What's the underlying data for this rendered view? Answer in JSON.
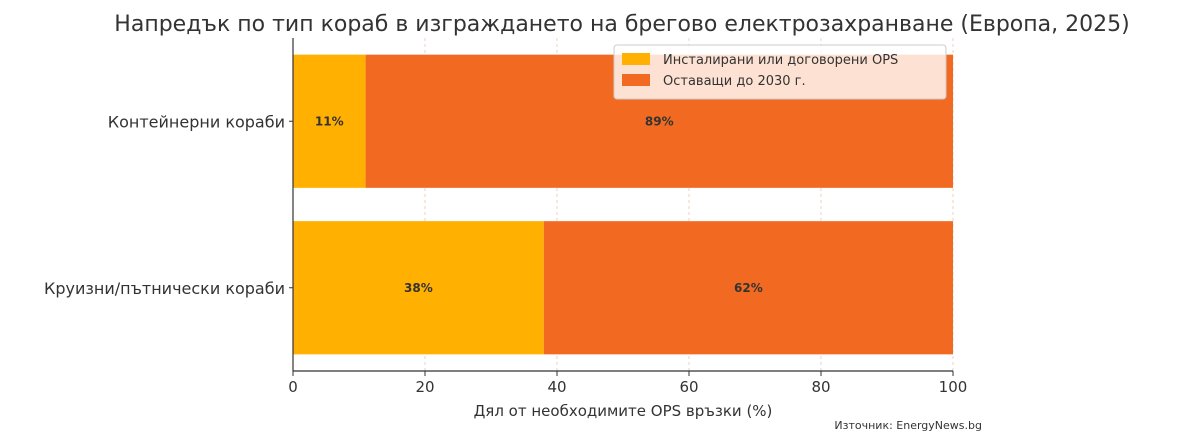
{
  "chart_data": {
    "type": "bar",
    "orientation": "horizontal",
    "stacked": true,
    "title": "Напредък по тип кораб в изграждането на брегово електрозахранване (Европа, 2025)",
    "xlabel": "Дял от необходимите OPS връзки (%)",
    "ylabel": "",
    "xlim": [
      0,
      100
    ],
    "x_ticks": [
      "0",
      "20",
      "40",
      "60",
      "80",
      "100"
    ],
    "categories": [
      "Контейнерни кораби",
      "Круизни/пътнически кораби"
    ],
    "series": [
      {
        "name": "Инсталирани или договорени OPS",
        "values": [
          11,
          38
        ],
        "labels": [
          "11%",
          "38%"
        ],
        "color": "#FFB000"
      },
      {
        "name": "Оставащи до 2030 г.",
        "values": [
          89,
          62
        ],
        "labels": [
          "89%",
          "62%"
        ],
        "color": "#F26A21"
      }
    ],
    "legend_position": "top-right",
    "grid": true,
    "source": "Източник: EnergyNews.bg"
  }
}
